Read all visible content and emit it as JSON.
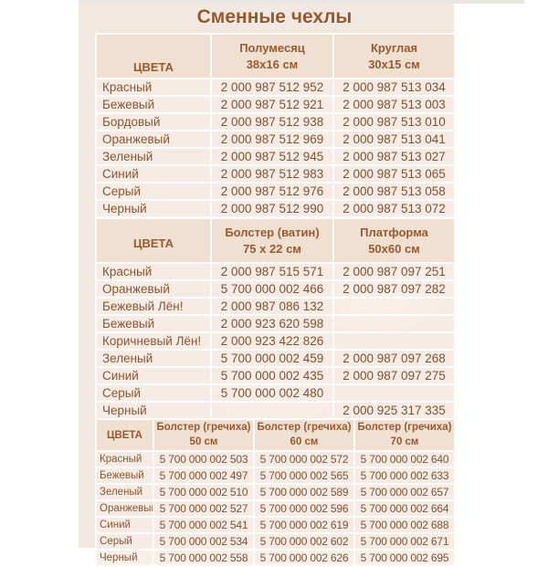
{
  "title": "Сменные чехлы",
  "theme": {
    "panel_bg": "#f1e8e1",
    "header_cell_bg": "#f0ded0",
    "row_cell_bg": "#f8ece5",
    "accent_text": "#9a5a2e",
    "body_text": "#7f5130",
    "grid_line": "#ffffff"
  },
  "tables": [
    {
      "color_header": "ЦВЕТА",
      "columns": [
        {
          "name": "Полумесяц",
          "size": "38x16 см"
        },
        {
          "name": "Круглая",
          "size": "30x15 см"
        }
      ],
      "rows": [
        {
          "color": "Красный",
          "codes": [
            "2 000 987 512 952",
            "2 000 987 513 034"
          ]
        },
        {
          "color": "Бежевый",
          "codes": [
            "2 000 987 512 921",
            "2 000 987 513 003"
          ]
        },
        {
          "color": "Бордовый",
          "codes": [
            "2 000 987 512 938",
            "2 000 987 513 010"
          ]
        },
        {
          "color": "Оранжевый",
          "codes": [
            "2 000 987 512 969",
            "2 000 987 513 041"
          ]
        },
        {
          "color": "Зеленый",
          "codes": [
            "2 000 987 512 945",
            "2 000 987 513 027"
          ]
        },
        {
          "color": "Синий",
          "codes": [
            "2 000 987 512 983",
            "2 000 987 513 065"
          ]
        },
        {
          "color": "Серый",
          "codes": [
            "2 000 987 512 976",
            "2 000 987 513 058"
          ]
        },
        {
          "color": "Черный",
          "codes": [
            "2 000 987 512 990",
            "2 000 987 513 072"
          ]
        }
      ]
    },
    {
      "color_header": "ЦВЕТА",
      "columns": [
        {
          "name": "Болстер (ватин)",
          "size": "75 x 22 см"
        },
        {
          "name": "Платформа",
          "size": "50x60 см"
        }
      ],
      "rows": [
        {
          "color": "Красный",
          "codes": [
            "2 000 987 515 571",
            "2 000 987 097 251"
          ]
        },
        {
          "color": "Оранжевый",
          "codes": [
            "5 700 000 002 466",
            "2 000 987 097 282"
          ]
        },
        {
          "color": "Бежевый Лён!",
          "codes": [
            "2 000 987 086 132",
            ""
          ]
        },
        {
          "color": "Бежевый",
          "codes": [
            "2 000 923 620 598",
            ""
          ]
        },
        {
          "color": "Коричневый Лён!",
          "codes": [
            "2 000 923 422 826",
            ""
          ]
        },
        {
          "color": "Зеленый",
          "codes": [
            "5 700 000 002 459",
            "2 000 987 097 268"
          ]
        },
        {
          "color": "Синий",
          "codes": [
            "5 700 000 002 435",
            "2 000 987 097 275"
          ]
        },
        {
          "color": "Серый",
          "codes": [
            "5 700 000 002 480",
            ""
          ]
        },
        {
          "color": "Черный",
          "codes": [
            "",
            "2 000 925 317 335"
          ]
        }
      ]
    },
    {
      "color_header": "ЦВЕТА",
      "columns": [
        {
          "name": "Болстер (гречиха)",
          "size": "50 см"
        },
        {
          "name": "Болстер (гречиха)",
          "size": "60 см"
        },
        {
          "name": "Болстер (гречиха)",
          "size": "70 см"
        }
      ],
      "rows": [
        {
          "color": "Красный",
          "codes": [
            "5 700 000 002 503",
            "5 700 000 002 572",
            "5 700 000 002 640"
          ]
        },
        {
          "color": "Бежевый",
          "codes": [
            "5 700 000 002 497",
            "5 700 000 002 565",
            "5 700 000 002 633"
          ]
        },
        {
          "color": "Зеленый",
          "codes": [
            "5 700 000 002 510",
            "5 700 000 002 589",
            "5 700 000 002 657"
          ]
        },
        {
          "color": "Оранжевый",
          "codes": [
            "5 700 000 002 527",
            "5 700 000 002 596",
            "5 700 000 002 664"
          ]
        },
        {
          "color": "Синий",
          "codes": [
            "5 700 000 002 541",
            "5 700 000 002 619",
            "5 700 000 002 688"
          ]
        },
        {
          "color": "Серый",
          "codes": [
            "5 700 000 002 534",
            "5 700 000 002 602",
            "5 700 000 002 671"
          ]
        },
        {
          "color": "Черный",
          "codes": [
            "5 700 000 002 558",
            "5 700 000 002 626",
            "5 700 000 002 695"
          ]
        }
      ]
    }
  ]
}
